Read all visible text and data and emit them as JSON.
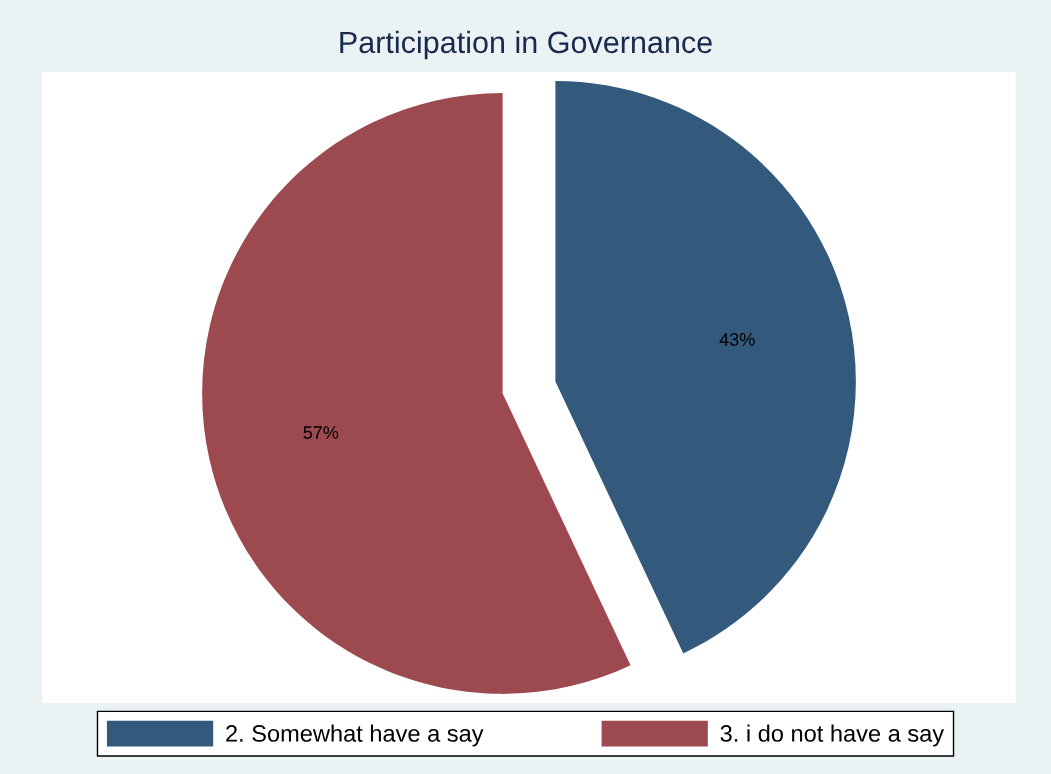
{
  "chart_data": {
    "type": "pie",
    "title": "Participation in Governance",
    "categories": [
      "2. Somewhat have a say",
      "3. i do not have a say"
    ],
    "values": [
      43,
      57
    ],
    "colors": [
      "#335a7c",
      "#9c4a4f"
    ],
    "value_labels": [
      "43%",
      "57%"
    ],
    "legend": "bottom"
  }
}
